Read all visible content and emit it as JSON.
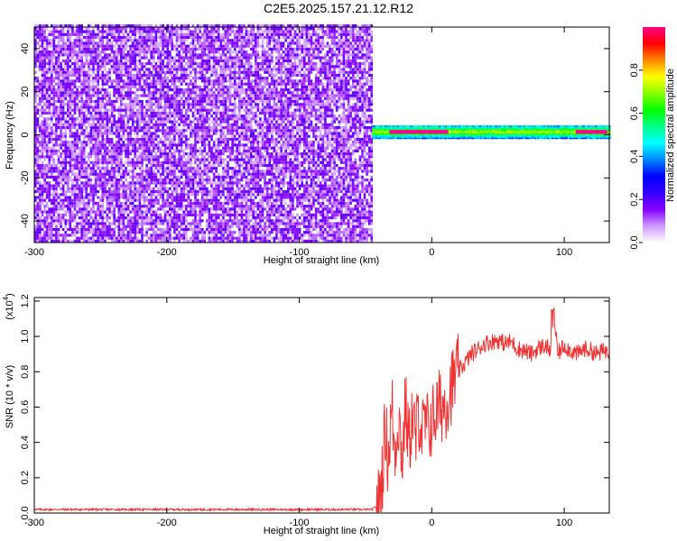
{
  "figure": {
    "title": "C2E5.2025.157.21.12.R12"
  },
  "chart_data": [
    {
      "type": "heatmap",
      "xlabel": "Height of straight line (km)",
      "ylabel": "Frequency (Hz)",
      "xlim": [
        -300,
        134
      ],
      "ylim": [
        -50,
        50
      ],
      "x_ticks": [
        -300,
        -200,
        -100,
        0,
        100
      ],
      "y_ticks": [
        -40,
        -20,
        0,
        20,
        40
      ],
      "colorbar": {
        "label": "Normalized spectral amplitude",
        "range": [
          0.0,
          1.0
        ],
        "ticks": [
          0.0,
          0.2,
          0.4,
          0.6,
          0.8
        ],
        "colormap": [
          "#ffffff",
          "#cc99ff",
          "#8800ff",
          "#3300ff",
          "#0000ff",
          "#0088ff",
          "#00ffff",
          "#00ff88",
          "#00ff00",
          "#88ff00",
          "#ffff00",
          "#ff8800",
          "#ff0000",
          "#ff0088"
        ]
      },
      "regions": [
        {
          "name": "noise",
          "x_range": [
            -300,
            -45
          ],
          "freq_range": [
            -50,
            50
          ],
          "amplitude_range": [
            0.02,
            0.2
          ]
        },
        {
          "name": "carrier",
          "x_range": [
            -45,
            134
          ],
          "center_freq": 1,
          "half_width_hz": 3,
          "amplitude_range": [
            0.3,
            1.0
          ],
          "peak_x": [
            -20,
            0,
            120
          ]
        }
      ]
    },
    {
      "type": "line",
      "xlabel": "Height of straight line (km)",
      "ylabel": "SNR (10 * v/v)",
      "y_scale_label": "(x10",
      "y_scale_exp": "4",
      "y_scale_close": ")",
      "xlim": [
        -300,
        134
      ],
      "ylim": [
        0,
        1.22
      ],
      "x_ticks": [
        -300,
        -200,
        -100,
        0,
        100
      ],
      "y_ticks": [
        0.0,
        0.2,
        0.4,
        0.6,
        0.8,
        1.0,
        1.2
      ],
      "series": [
        {
          "color": "#ee3333",
          "x": [
            -300,
            -250,
            -200,
            -150,
            -100,
            -60,
            -45,
            -40,
            -37,
            -35,
            -33,
            -30,
            -28,
            -25,
            -22,
            -20,
            -17,
            -15,
            -12,
            -10,
            -7,
            -5,
            -3,
            0,
            5,
            10,
            15,
            20,
            25,
            30,
            35,
            40,
            45,
            50,
            55,
            60,
            65,
            70,
            75,
            80,
            85,
            90,
            92,
            95,
            100,
            105,
            110,
            115,
            120,
            125,
            130,
            134
          ],
          "values": [
            0.02,
            0.02,
            0.02,
            0.02,
            0.02,
            0.02,
            0.02,
            0.05,
            0.25,
            0.5,
            0.3,
            0.6,
            0.35,
            0.55,
            0.3,
            0.62,
            0.38,
            0.55,
            0.42,
            0.58,
            0.45,
            0.5,
            0.48,
            0.52,
            0.6,
            0.62,
            0.72,
            0.8,
            0.85,
            0.9,
            0.93,
            0.96,
            0.97,
            0.98,
            0.96,
            0.97,
            0.93,
            0.92,
            0.9,
            0.93,
            0.95,
            0.92,
            1.15,
            0.9,
            0.95,
            0.92,
            0.9,
            0.93,
            0.92,
            0.9,
            0.92,
            0.92
          ]
        }
      ]
    }
  ]
}
